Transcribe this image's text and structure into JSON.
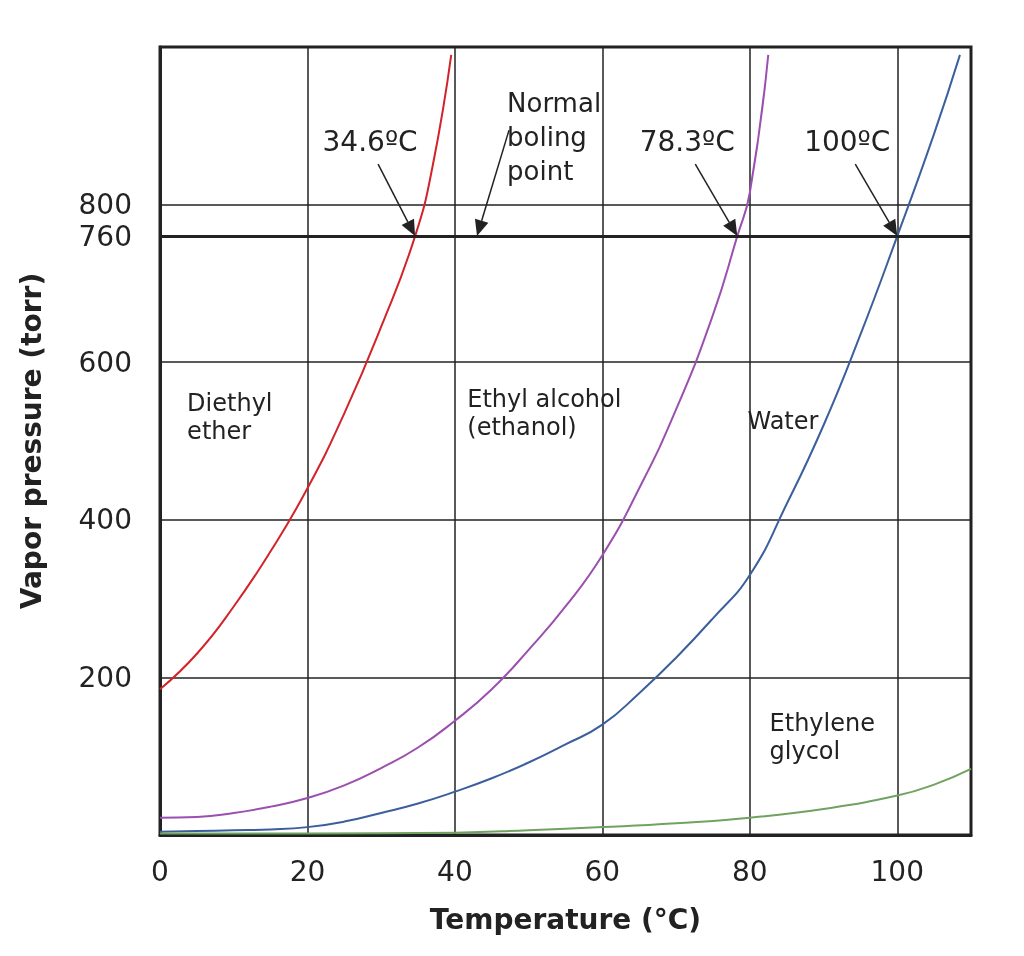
{
  "chart_data": {
    "type": "line",
    "xlabel": "Temperature (°C)",
    "ylabel": "Vapor pressure (torr)",
    "xlim": [
      0,
      110
    ],
    "xticks": [
      0,
      20,
      40,
      60,
      80,
      100
    ],
    "ylim": [
      0,
      1000
    ],
    "yticks": [
      200,
      400,
      600,
      760,
      800
    ],
    "grid": true,
    "legend": false,
    "marker": "none",
    "line_style": "solid",
    "series": [
      {
        "name": "Diethyl ether",
        "color": "#d2232a",
        "x": [
          0,
          5,
          10,
          15,
          20,
          25,
          30,
          34.6,
          37,
          39.5
        ],
        "values": [
          185,
          230,
          290,
          360,
          440,
          535,
          645,
          760,
          850,
          990
        ]
      },
      {
        "name": "Ethyl alcohol (ethanol)",
        "color": "#9b4fae",
        "x": [
          0,
          5,
          10,
          15,
          20,
          25,
          30,
          35,
          40,
          45,
          50,
          55,
          60,
          65,
          70,
          75,
          78.3,
          80,
          82.5
        ],
        "values": [
          22,
          23,
          28,
          36,
          47,
          63,
          85,
          111,
          145,
          185,
          235,
          290,
          355,
          440,
          540,
          660,
          760,
          815,
          990
        ]
      },
      {
        "name": "Water",
        "color": "#3b5f9c",
        "x": [
          0,
          5,
          10,
          15,
          20,
          25,
          30,
          35,
          40,
          45,
          50,
          55,
          60,
          65,
          70,
          75,
          80,
          85,
          90,
          95,
          100,
          105,
          108.5
        ],
        "values": [
          4,
          5,
          6,
          7,
          10,
          17,
          28,
          40,
          55,
          72,
          92,
          115,
          140,
          180,
          225,
          275,
          330,
          420,
          520,
          635,
          760,
          890,
          990
        ]
      },
      {
        "name": "Ethylene glycol",
        "color": "#6fa35f",
        "x": [
          0,
          20,
          40,
          50,
          60,
          70,
          80,
          90,
          100,
          105,
          110
        ],
        "values": [
          2,
          2,
          3,
          6,
          10,
          15,
          22,
          33,
          50,
          64,
          84
        ]
      }
    ],
    "ref_lines": [
      {
        "axis": "y",
        "value": 760
      }
    ],
    "annotations": [
      {
        "text": "Normal boling point",
        "x": 43,
        "y": 760
      },
      {
        "text": "34.6ºC",
        "x": 34.6,
        "y": 760
      },
      {
        "text": "78.3ºC",
        "x": 78.3,
        "y": 760
      },
      {
        "text": "100ºC",
        "x": 100,
        "y": 760
      }
    ]
  }
}
